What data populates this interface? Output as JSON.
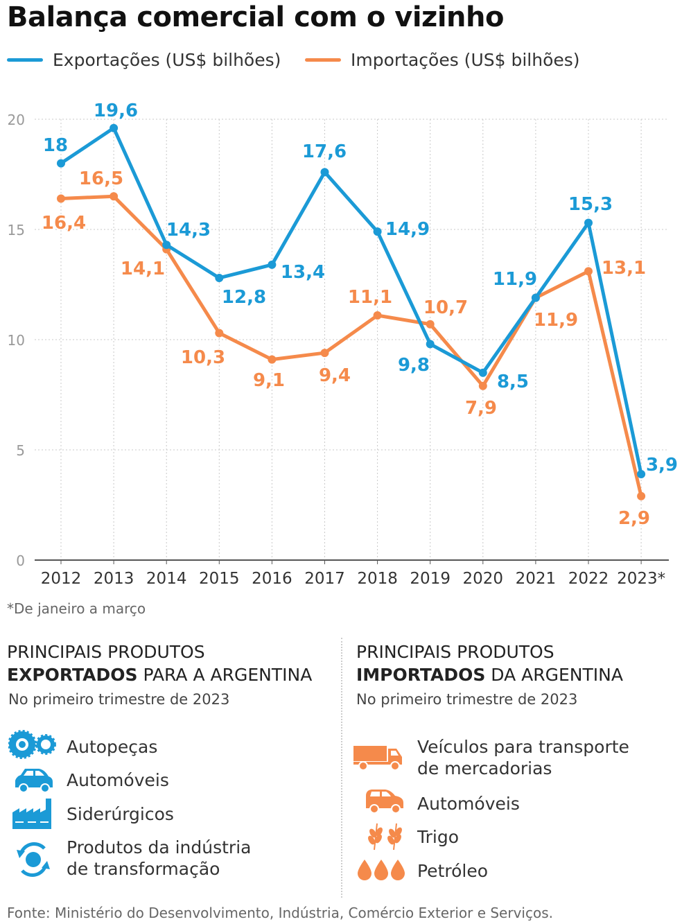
{
  "title": "Balança comercial com o vizinho",
  "footnote": "*De janeiro a março",
  "source": "Fonte: Ministério do Desenvolvimento, Indústria, Comércio Exterior e Serviços.",
  "colors": {
    "exports": "#1b9ad6",
    "imports": "#f58a4b",
    "grid": "#c8c8c8",
    "axis": "#555555"
  },
  "chart_data": {
    "type": "line",
    "title": "Balança comercial com o vizinho",
    "categories": [
      "2012",
      "2013",
      "2014",
      "2015",
      "2016",
      "2017",
      "2018",
      "2019",
      "2020",
      "2021",
      "2022",
      "2023*"
    ],
    "series": [
      {
        "name": "Exportações (US$ bilhões)",
        "values": [
          18,
          19.6,
          14.3,
          12.8,
          13.4,
          17.6,
          14.9,
          9.8,
          8.5,
          11.9,
          15.3,
          3.9
        ],
        "labels": [
          "18",
          "19,6",
          "14,3",
          "12,8",
          "13,4",
          "17,6",
          "14,9",
          "9,8",
          "8,5",
          "11,9",
          "15,3",
          "3,9"
        ]
      },
      {
        "name": "Importações (US$ bilhões)",
        "values": [
          16.4,
          16.5,
          14.1,
          10.3,
          9.1,
          9.4,
          11.1,
          10.7,
          7.9,
          11.9,
          13.1,
          2.9
        ],
        "labels": [
          "16,4",
          "16,5",
          "14,1",
          "10,3",
          "9,1",
          "9,4",
          "11,1",
          "10,7",
          "7,9",
          "11,9",
          "13,1",
          "2,9"
        ]
      }
    ],
    "ylim": [
      0,
      20
    ],
    "yticks": [
      "0",
      "5",
      "10",
      "15",
      "20"
    ],
    "grid": true,
    "legend": "top"
  },
  "exports": {
    "heading_line1": "PRINCIPAIS PRODUTOS",
    "heading_bold": "EXPORTADOS",
    "heading_rest": " PARA A ARGENTINA",
    "subtitle": "No primeiro trimestre de 2023",
    "items": [
      {
        "icon": "gears-icon",
        "label": "Autopeças"
      },
      {
        "icon": "car-icon",
        "label": "Automóveis"
      },
      {
        "icon": "factory-icon",
        "label": "Siderúrgicos"
      },
      {
        "icon": "recycle-icon",
        "label": "Produtos da indústria\nde transformação"
      }
    ]
  },
  "imports": {
    "heading_line1": "PRINCIPAIS PRODUTOS",
    "heading_bold": "IMPORTADOS",
    "heading_rest": " DA ARGENTINA",
    "subtitle": "No primeiro trimestre de 2023",
    "items": [
      {
        "icon": "truck-icon",
        "label": "Veículos para transporte\nde mercadorias"
      },
      {
        "icon": "car-icon",
        "label": "Automóveis"
      },
      {
        "icon": "wheat-icon",
        "label": "Trigo"
      },
      {
        "icon": "oil-drops-icon",
        "label": "Petróleo"
      }
    ]
  }
}
